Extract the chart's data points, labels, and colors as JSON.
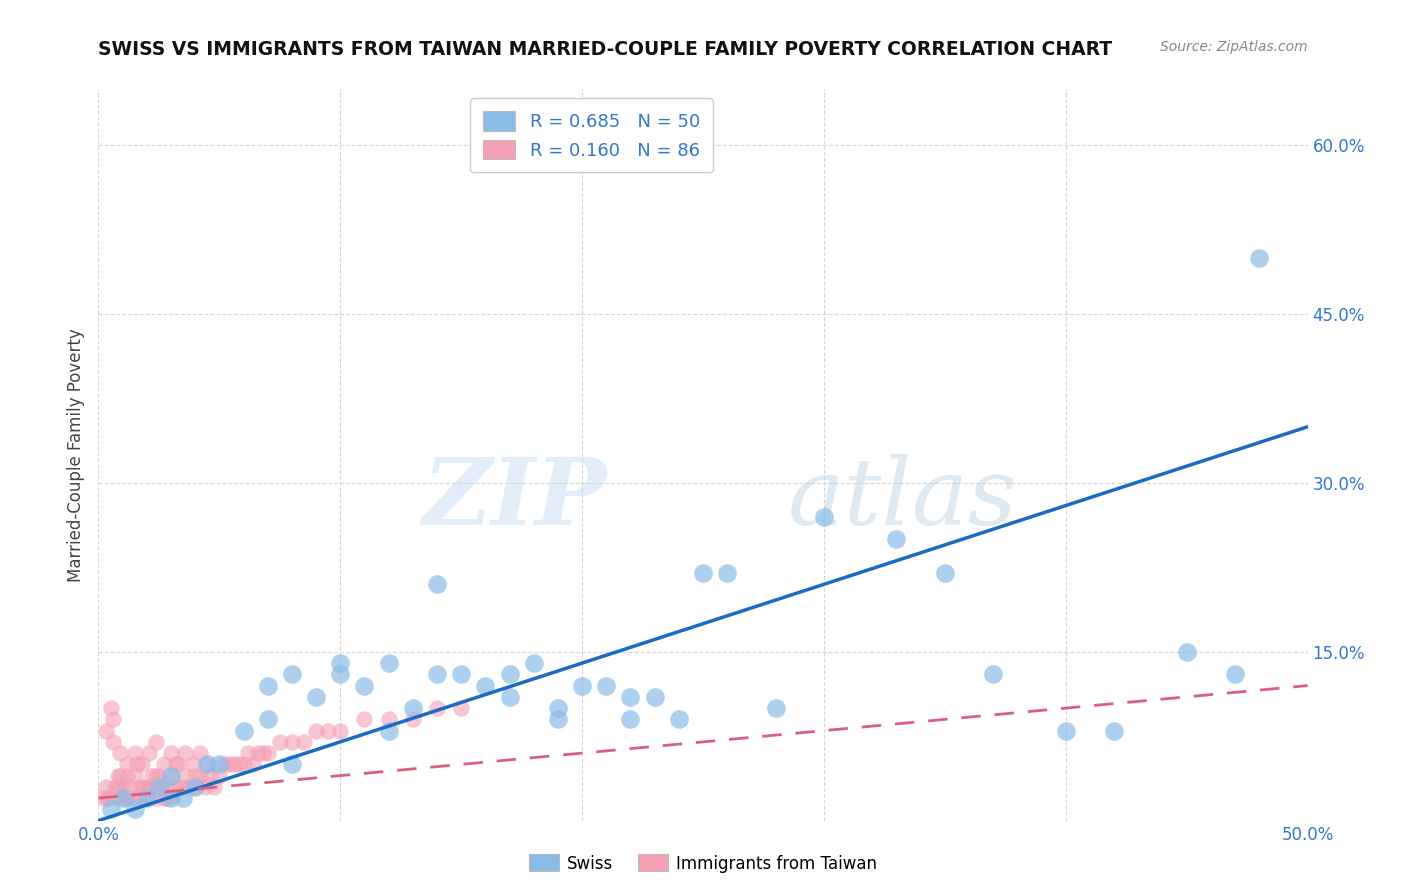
{
  "title": "SWISS VS IMMIGRANTS FROM TAIWAN MARRIED-COUPLE FAMILY POVERTY CORRELATION CHART",
  "source": "Source: ZipAtlas.com",
  "ylabel": "Married-Couple Family Poverty",
  "xlim": [
    0.0,
    0.5
  ],
  "ylim": [
    0.0,
    0.65
  ],
  "xticks": [
    0.0,
    0.1,
    0.2,
    0.3,
    0.4,
    0.5
  ],
  "yticks": [
    0.0,
    0.15,
    0.3,
    0.45,
    0.6
  ],
  "xticklabels": [
    "0.0%",
    "",
    "",
    "",
    "",
    "50.0%"
  ],
  "yticklabels_right": [
    "",
    "15.0%",
    "30.0%",
    "45.0%",
    "60.0%"
  ],
  "swiss_color": "#89bde8",
  "taiwan_color": "#f4a0b5",
  "swiss_line_color": "#1a6bc4",
  "taiwan_line_color": "#d9607a",
  "swiss_R": 0.685,
  "swiss_N": 50,
  "taiwan_R": 0.16,
  "taiwan_N": 86,
  "watermark_zip": "ZIP",
  "watermark_atlas": "atlas",
  "background_color": "#ffffff",
  "grid_color": "#cccccc",
  "swiss_scatter_x": [
    0.005,
    0.01,
    0.015,
    0.02,
    0.025,
    0.03,
    0.035,
    0.04,
    0.045,
    0.05,
    0.06,
    0.07,
    0.08,
    0.09,
    0.1,
    0.11,
    0.12,
    0.13,
    0.14,
    0.15,
    0.16,
    0.17,
    0.18,
    0.19,
    0.2,
    0.21,
    0.22,
    0.23,
    0.24,
    0.25,
    0.28,
    0.3,
    0.33,
    0.35,
    0.37,
    0.4,
    0.42,
    0.45,
    0.47,
    0.48,
    0.08,
    0.12,
    0.17,
    0.19,
    0.22,
    0.26,
    0.1,
    0.14,
    0.07,
    0.03
  ],
  "swiss_scatter_y": [
    0.01,
    0.02,
    0.01,
    0.02,
    0.03,
    0.04,
    0.02,
    0.03,
    0.05,
    0.05,
    0.08,
    0.09,
    0.13,
    0.11,
    0.14,
    0.12,
    0.14,
    0.1,
    0.13,
    0.13,
    0.12,
    0.11,
    0.14,
    0.09,
    0.12,
    0.12,
    0.11,
    0.11,
    0.09,
    0.22,
    0.1,
    0.27,
    0.25,
    0.22,
    0.13,
    0.08,
    0.08,
    0.15,
    0.13,
    0.5,
    0.05,
    0.08,
    0.13,
    0.1,
    0.09,
    0.22,
    0.13,
    0.21,
    0.12,
    0.02
  ],
  "taiwan_scatter_x": [
    0.002,
    0.003,
    0.004,
    0.005,
    0.006,
    0.007,
    0.008,
    0.009,
    0.01,
    0.011,
    0.012,
    0.013,
    0.014,
    0.015,
    0.016,
    0.017,
    0.018,
    0.019,
    0.02,
    0.021,
    0.022,
    0.023,
    0.024,
    0.025,
    0.026,
    0.027,
    0.028,
    0.029,
    0.03,
    0.032,
    0.034,
    0.036,
    0.038,
    0.04,
    0.042,
    0.044,
    0.046,
    0.048,
    0.05,
    0.052,
    0.054,
    0.056,
    0.058,
    0.06,
    0.062,
    0.064,
    0.066,
    0.068,
    0.07,
    0.075,
    0.08,
    0.085,
    0.09,
    0.095,
    0.1,
    0.11,
    0.12,
    0.13,
    0.14,
    0.15,
    0.003,
    0.006,
    0.009,
    0.012,
    0.015,
    0.018,
    0.021,
    0.024,
    0.027,
    0.03,
    0.033,
    0.036,
    0.039,
    0.042,
    0.045,
    0.008,
    0.016,
    0.024,
    0.032,
    0.04,
    0.004,
    0.008,
    0.012,
    0.02,
    0.028,
    0.036
  ],
  "taiwan_scatter_y": [
    0.02,
    0.03,
    0.02,
    0.1,
    0.09,
    0.03,
    0.02,
    0.04,
    0.03,
    0.02,
    0.04,
    0.03,
    0.02,
    0.04,
    0.02,
    0.03,
    0.02,
    0.03,
    0.02,
    0.03,
    0.04,
    0.03,
    0.02,
    0.04,
    0.03,
    0.02,
    0.03,
    0.02,
    0.04,
    0.03,
    0.03,
    0.04,
    0.03,
    0.03,
    0.04,
    0.03,
    0.04,
    0.03,
    0.04,
    0.05,
    0.05,
    0.05,
    0.05,
    0.05,
    0.06,
    0.05,
    0.06,
    0.06,
    0.06,
    0.07,
    0.07,
    0.07,
    0.08,
    0.08,
    0.08,
    0.09,
    0.09,
    0.09,
    0.1,
    0.1,
    0.08,
    0.07,
    0.06,
    0.05,
    0.06,
    0.05,
    0.06,
    0.07,
    0.05,
    0.06,
    0.05,
    0.06,
    0.05,
    0.06,
    0.05,
    0.04,
    0.05,
    0.04,
    0.05,
    0.04,
    0.02,
    0.03,
    0.02,
    0.03,
    0.02,
    0.03
  ],
  "swiss_trendline_x": [
    0.0,
    0.5
  ],
  "swiss_trendline_y": [
    0.0,
    0.35
  ],
  "taiwan_trendline_x": [
    0.0,
    0.5
  ],
  "taiwan_trendline_y": [
    0.02,
    0.12
  ]
}
